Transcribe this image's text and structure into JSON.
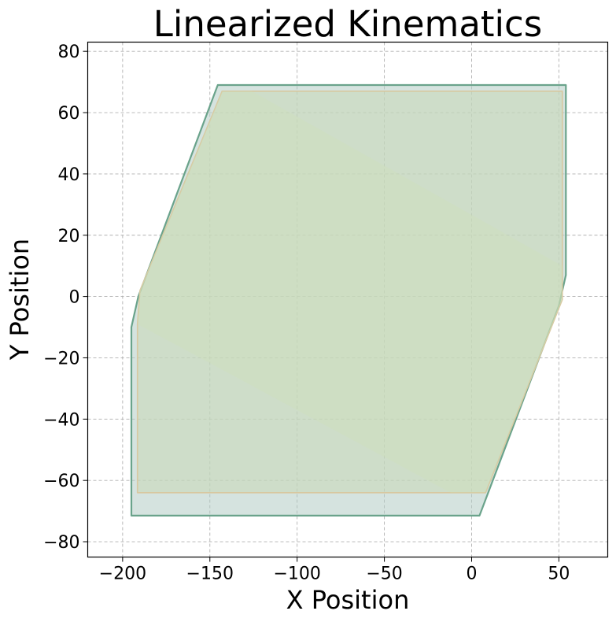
{
  "chart_data": {
    "type": "area",
    "title": "Linearized Kinematics",
    "xlabel": "X Position",
    "ylabel": "Y Position",
    "xlim": [
      -220,
      78
    ],
    "ylim": [
      -85,
      83
    ],
    "xticks": [
      -200,
      -150,
      -100,
      -50,
      0,
      50
    ],
    "xtick_labels": [
      "−200",
      "−150",
      "−100",
      "−50",
      "0",
      "50"
    ],
    "yticks": [
      -80,
      -60,
      -40,
      -20,
      0,
      20,
      40,
      60,
      80
    ],
    "ytick_labels": [
      "−80",
      "−60",
      "−40",
      "−20",
      "0",
      "20",
      "40",
      "60",
      "80"
    ],
    "grid": true,
    "series": [
      {
        "polygon": [
          [
            -195,
            -71.5
          ],
          [
            4.5,
            -71.5
          ],
          [
            50,
            -3
          ],
          [
            54,
            7
          ],
          [
            54,
            69
          ],
          [
            -145.5,
            69
          ],
          [
            -191,
            0
          ],
          [
            -195,
            -10
          ],
          [
            -195,
            -71.5
          ]
        ],
        "fill": "#b3ccc4",
        "fill_opacity": 0.55,
        "stroke": "#6aa38b",
        "stroke_width": 2.2
      },
      {
        "polygon": [
          [
            -191.5,
            -64
          ],
          [
            8,
            -64
          ],
          [
            52,
            -1
          ],
          [
            52,
            67
          ],
          [
            -143,
            67
          ],
          [
            -190,
            2
          ],
          [
            -191.5,
            -9
          ],
          [
            -191.5,
            -64
          ]
        ],
        "fill": "#c8d8b6",
        "fill_opacity": 0.55,
        "stroke": "#d8c8a0",
        "stroke_width": 1.6
      },
      {
        "polygon": [
          [
            -12,
            -64
          ],
          [
            8,
            -64
          ],
          [
            52,
            -1
          ],
          [
            52,
            10
          ],
          [
            -126,
            67
          ],
          [
            -143,
            67
          ],
          [
            -190,
            2
          ],
          [
            -191.5,
            -9
          ],
          [
            -12,
            -64
          ]
        ],
        "fill": "#cfe0b8",
        "fill_opacity": 0.35,
        "stroke": "none",
        "stroke_width": 0
      }
    ]
  }
}
